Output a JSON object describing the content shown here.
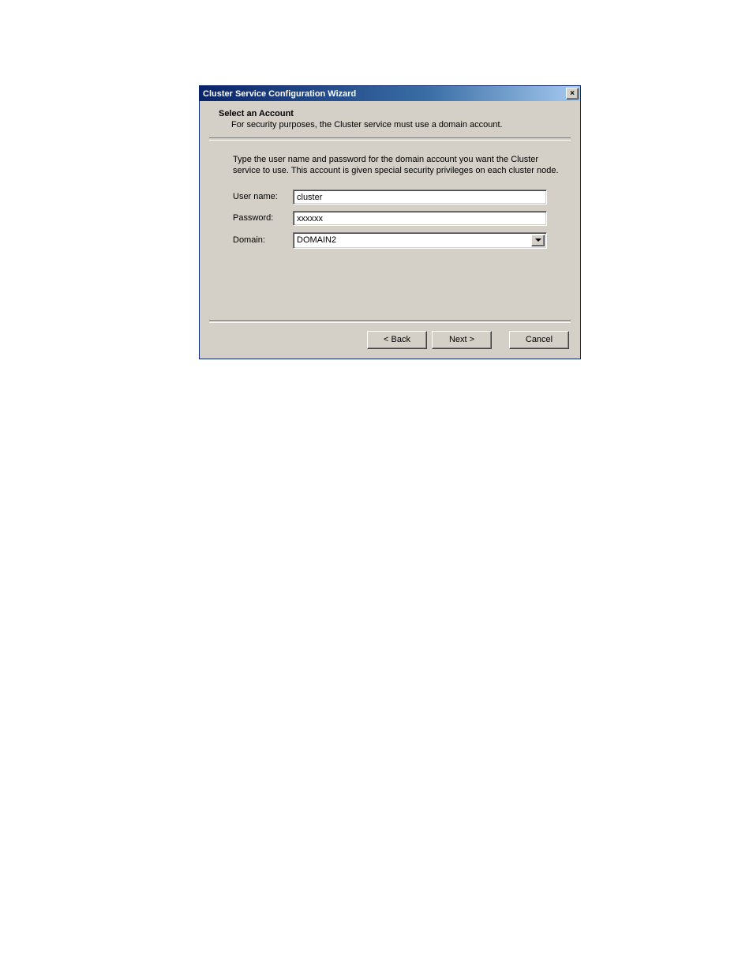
{
  "titlebar": {
    "title": "Cluster Service Configuration Wizard",
    "close_glyph": "×"
  },
  "header": {
    "title": "Select an Account",
    "subtitle": "For security purposes, the Cluster service must use a domain account."
  },
  "instruction": "Type the user name and password for the domain account you want the Cluster service to use. This account is given special security privileges on each cluster node.",
  "form": {
    "username_label": "User name:",
    "username_value": "cluster",
    "password_label": "Password:",
    "password_value": "xxxxxx",
    "domain_label": "Domain:",
    "domain_value": "DOMAIN2"
  },
  "buttons": {
    "back": "< Back",
    "next": "Next >",
    "cancel": "Cancel"
  },
  "colors": {
    "dialog_bg": "#d4d0c8",
    "titlebar_left": "#0a246a",
    "titlebar_right": "#a6caf0",
    "titlebar_text": "#ffffff",
    "input_bg": "#ffffff"
  }
}
